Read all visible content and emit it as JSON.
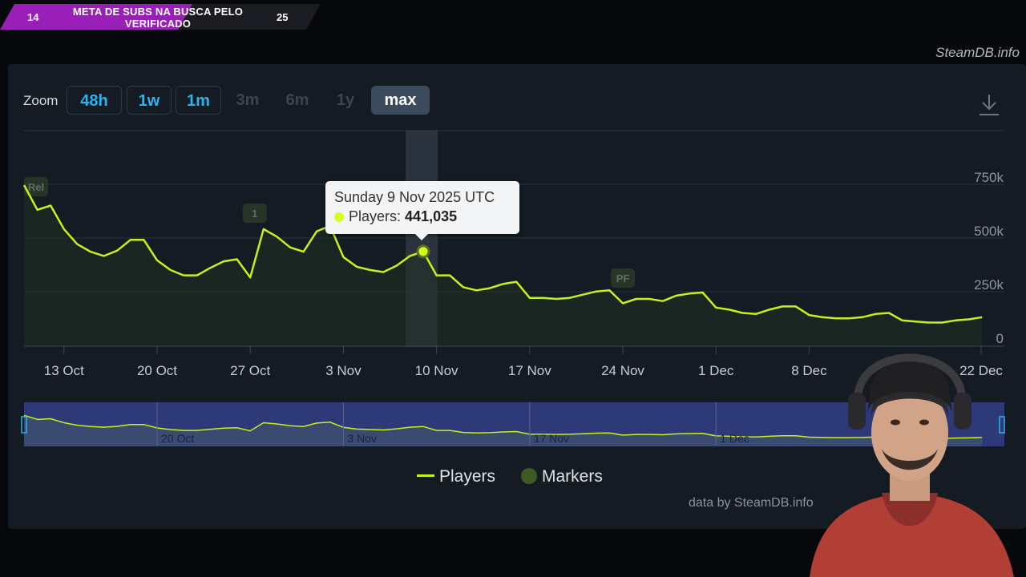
{
  "overlay": {
    "left_number": "14",
    "title": "META DE SUBS NA BUSCA PELO VERIFICADO",
    "right_number": "25",
    "progress_fraction": 0.56
  },
  "site_label": "SteamDB.info",
  "zoom": {
    "label": "Zoom",
    "buttons": [
      {
        "label": "48h",
        "state": "active"
      },
      {
        "label": "1w",
        "state": "active"
      },
      {
        "label": "1m",
        "state": "active"
      },
      {
        "label": "3m",
        "state": "disabled"
      },
      {
        "label": "6m",
        "state": "disabled"
      },
      {
        "label": "1y",
        "state": "disabled"
      },
      {
        "label": "max",
        "state": "selected"
      }
    ]
  },
  "chart_data": {
    "type": "line",
    "title": "",
    "x_ticks": [
      "13 Oct",
      "20 Oct",
      "27 Oct",
      "3 Nov",
      "10 Nov",
      "17 Nov",
      "24 Nov",
      "1 Dec",
      "8 Dec",
      "22 Dec"
    ],
    "y_ticks": [
      "750k",
      "500k",
      "250k",
      "0"
    ],
    "ylim": [
      0,
      1000000
    ],
    "x_start_date": "2025-10-10",
    "series": [
      {
        "name": "Players",
        "color": "#c8f01c",
        "points": [
          [
            "2025-10-10",
            750000
          ],
          [
            "2025-10-11",
            635000
          ],
          [
            "2025-10-12",
            655000
          ],
          [
            "2025-10-13",
            545000
          ],
          [
            "2025-10-14",
            475000
          ],
          [
            "2025-10-15",
            440000
          ],
          [
            "2025-10-16",
            420000
          ],
          [
            "2025-10-17",
            445000
          ],
          [
            "2025-10-18",
            495000
          ],
          [
            "2025-10-19",
            495000
          ],
          [
            "2025-10-20",
            400000
          ],
          [
            "2025-10-21",
            355000
          ],
          [
            "2025-10-22",
            330000
          ],
          [
            "2025-10-23",
            330000
          ],
          [
            "2025-10-24",
            365000
          ],
          [
            "2025-10-25",
            395000
          ],
          [
            "2025-10-26",
            405000
          ],
          [
            "2025-10-27",
            320000
          ],
          [
            "2025-10-28",
            545000
          ],
          [
            "2025-10-29",
            510000
          ],
          [
            "2025-10-30",
            460000
          ],
          [
            "2025-10-31",
            440000
          ],
          [
            "2025-11-01",
            535000
          ],
          [
            "2025-11-02",
            560000
          ],
          [
            "2025-11-03",
            415000
          ],
          [
            "2025-11-04",
            370000
          ],
          [
            "2025-11-05",
            355000
          ],
          [
            "2025-11-06",
            345000
          ],
          [
            "2025-11-07",
            375000
          ],
          [
            "2025-11-08",
            420000
          ],
          [
            "2025-11-09",
            441035
          ],
          [
            "2025-11-10",
            330000
          ],
          [
            "2025-11-11",
            330000
          ],
          [
            "2025-11-12",
            275000
          ],
          [
            "2025-11-13",
            260000
          ],
          [
            "2025-11-14",
            270000
          ],
          [
            "2025-11-15",
            290000
          ],
          [
            "2025-11-16",
            300000
          ],
          [
            "2025-11-17",
            225000
          ],
          [
            "2025-11-18",
            225000
          ],
          [
            "2025-11-19",
            220000
          ],
          [
            "2025-11-20",
            225000
          ],
          [
            "2025-11-21",
            240000
          ],
          [
            "2025-11-22",
            255000
          ],
          [
            "2025-11-23",
            260000
          ],
          [
            "2025-11-24",
            200000
          ],
          [
            "2025-11-25",
            220000
          ],
          [
            "2025-11-26",
            220000
          ],
          [
            "2025-11-27",
            210000
          ],
          [
            "2025-11-28",
            235000
          ],
          [
            "2025-11-29",
            245000
          ],
          [
            "2025-11-30",
            250000
          ],
          [
            "2025-12-01",
            180000
          ],
          [
            "2025-12-02",
            170000
          ],
          [
            "2025-12-03",
            155000
          ],
          [
            "2025-12-04",
            150000
          ],
          [
            "2025-12-05",
            170000
          ],
          [
            "2025-12-06",
            185000
          ],
          [
            "2025-12-07",
            185000
          ],
          [
            "2025-12-08",
            145000
          ],
          [
            "2025-12-09",
            135000
          ],
          [
            "2025-12-10",
            130000
          ],
          [
            "2025-12-11",
            130000
          ],
          [
            "2025-12-12",
            135000
          ],
          [
            "2025-12-13",
            150000
          ],
          [
            "2025-12-14",
            155000
          ],
          [
            "2025-12-15",
            120000
          ],
          [
            "2025-12-16",
            115000
          ],
          [
            "2025-12-17",
            110000
          ],
          [
            "2025-12-18",
            110000
          ],
          [
            "2025-12-19",
            120000
          ],
          [
            "2025-12-20",
            125000
          ],
          [
            "2025-12-21",
            135000
          ]
        ]
      }
    ],
    "markers": [
      {
        "label": "Rel",
        "date": "2025-10-10"
      },
      {
        "label": "1",
        "date": "2025-10-28"
      },
      {
        "label": "PF",
        "date": "2025-11-24"
      }
    ],
    "navigator_ticks": [
      "20 Oct",
      "3 Nov",
      "17 Nov",
      "1 Dec"
    ],
    "grid": true,
    "legend_placement": "bottom-center"
  },
  "tooltip": {
    "date": "Sunday 9 Nov 2025 UTC",
    "series_label": "Players:",
    "value": "441,035"
  },
  "legend": {
    "players": "Players",
    "markers": "Markers"
  },
  "credit": "data by SteamDB.info"
}
